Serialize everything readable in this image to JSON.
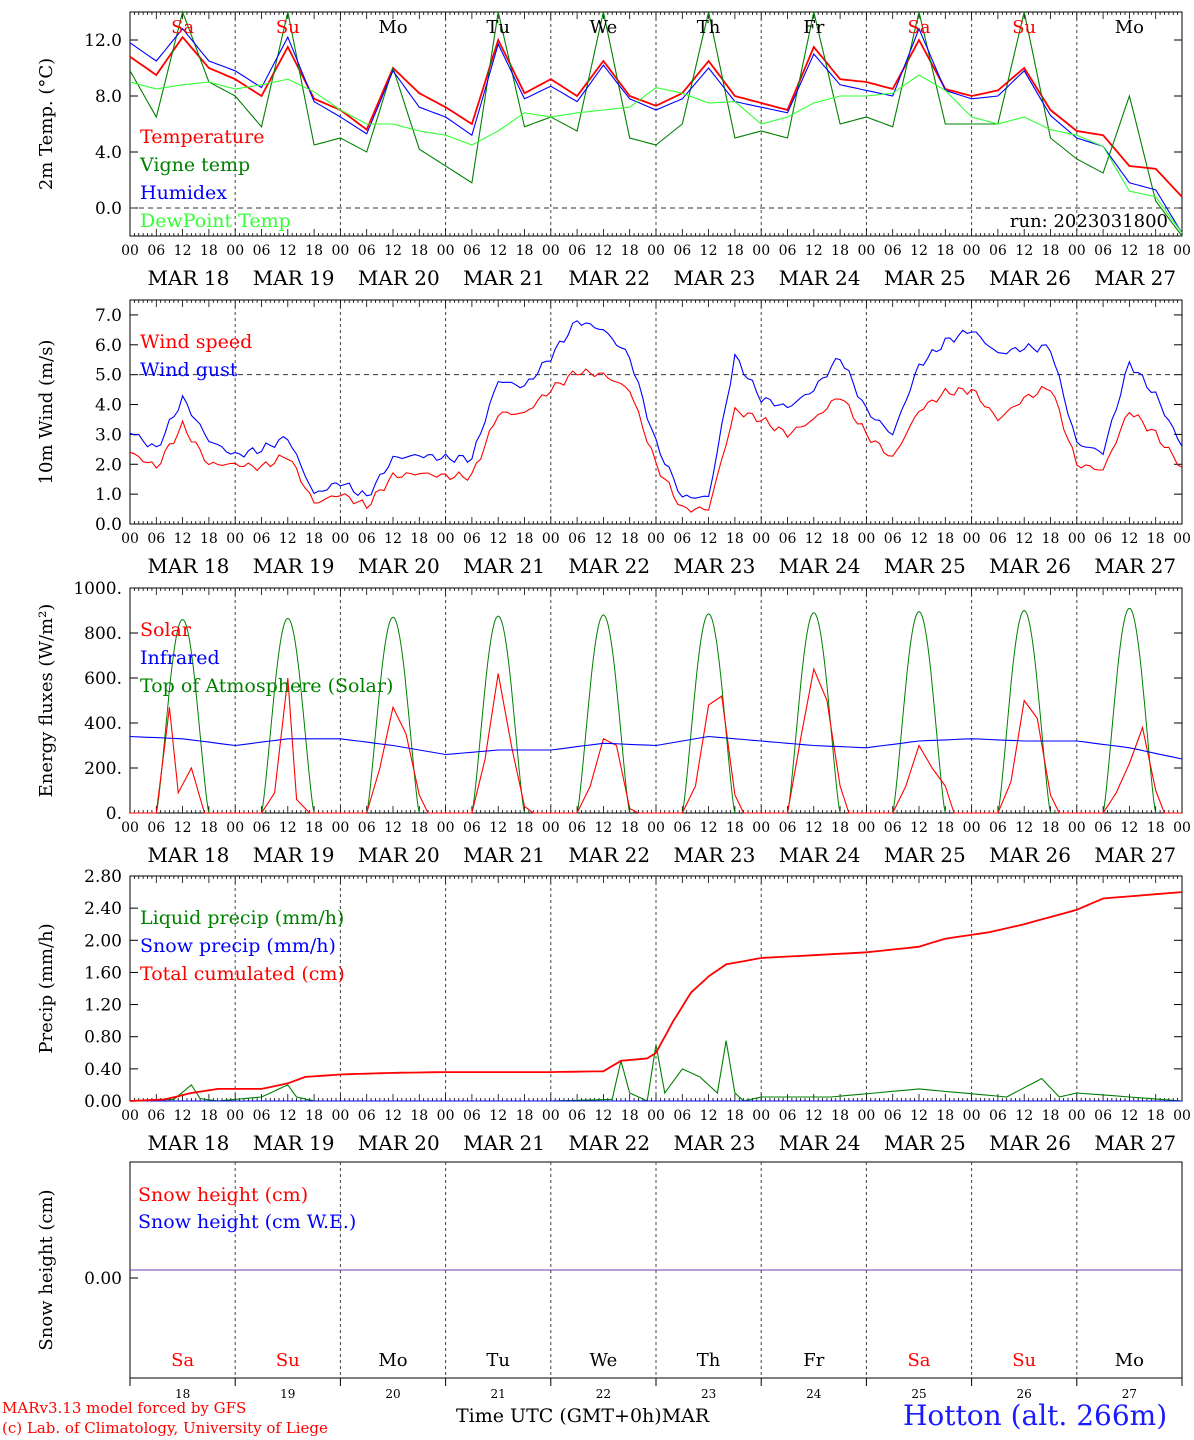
{
  "run": "run: 2023031800",
  "day_names": [
    "Sa",
    "Su",
    "Mo",
    "Tu",
    "We",
    "Th",
    "Fr",
    "Sa",
    "Su",
    "Mo"
  ],
  "date_labels": [
    "MAR 18",
    "MAR 19",
    "MAR 20",
    "MAR 21",
    "MAR 22",
    "MAR 23",
    "MAR 24",
    "MAR 25",
    "MAR 26",
    "MAR 27"
  ],
  "hour_labels": [
    "00",
    "06",
    "12",
    "18"
  ],
  "day_numbers": [
    "18",
    "19",
    "20",
    "21",
    "22",
    "23",
    "24",
    "25",
    "26",
    "27"
  ],
  "footer": {
    "credit_line1": "MARv3.13 model forced by GFS",
    "credit_line2": "(c) Lab. of Climatology, University of Liege",
    "x_title": "Time UTC (GMT+0h)MAR",
    "station": "Hotton (alt. 266m)"
  },
  "colors": {
    "red": "#ff0000",
    "green": "#008000",
    "blue": "#0000ff",
    "light_green": "#33ff33",
    "weekend": "#ff0000",
    "weekday": "#000000",
    "snow_line": "#7a3aaa"
  },
  "chart_data": [
    {
      "type": "line",
      "ylabel": "2m Temp. (°C)",
      "ylim": [
        -2,
        14
      ],
      "yticks": [
        "0.0",
        "4.0",
        "8.0",
        "12.0"
      ],
      "dashed_y": 0,
      "legend": [
        "Temperature",
        "Vigne temp",
        "Humidex",
        "DewPoint Temp"
      ],
      "x_unit": "hours since MAR 18 00 UTC",
      "series": [
        {
          "name": "Temperature",
          "color": "red",
          "x": [
            0,
            6,
            12,
            18,
            24,
            30,
            36,
            42,
            48,
            54,
            60,
            66,
            72,
            78,
            84,
            90,
            96,
            102,
            108,
            114,
            120,
            126,
            132,
            138,
            144,
            150,
            156,
            162,
            168,
            174,
            180,
            186,
            192,
            198,
            204,
            210,
            216,
            222,
            228,
            234,
            240
          ],
          "y": [
            10.8,
            9.5,
            12.2,
            10.0,
            9.2,
            8.0,
            11.5,
            7.8,
            7.0,
            5.6,
            10.0,
            8.2,
            7.2,
            6.0,
            12.0,
            8.2,
            9.2,
            8.0,
            10.5,
            8.0,
            7.3,
            8.2,
            10.5,
            8.0,
            7.5,
            7.0,
            11.5,
            9.2,
            9.0,
            8.5,
            12.0,
            8.5,
            8.0,
            8.4,
            10.0,
            7.0,
            5.5,
            5.2,
            3.0,
            2.8,
            0.8
          ]
        },
        {
          "name": "Vigne temp",
          "color": "green",
          "x": [
            0,
            6,
            12,
            18,
            24,
            30,
            36,
            42,
            48,
            54,
            60,
            66,
            72,
            78,
            84,
            90,
            96,
            102,
            108,
            114,
            120,
            126,
            132,
            138,
            144,
            150,
            156,
            162,
            168,
            174,
            180,
            186,
            192,
            198,
            204,
            210,
            216,
            222,
            228,
            234,
            240
          ],
          "y": [
            9.8,
            6.5,
            14.0,
            9.0,
            8.0,
            5.8,
            14.0,
            4.5,
            5.0,
            4.0,
            10.0,
            4.2,
            3.0,
            1.8,
            14.0,
            5.8,
            6.5,
            5.5,
            14.0,
            5.0,
            4.5,
            6.0,
            14.0,
            5.0,
            5.5,
            5.0,
            14.0,
            6.0,
            6.5,
            5.8,
            14.0,
            6.0,
            6.0,
            6.0,
            14.0,
            5.0,
            3.5,
            2.5,
            8.0,
            0.5,
            -2.0
          ]
        },
        {
          "name": "Humidex",
          "color": "blue",
          "x": [
            0,
            6,
            12,
            18,
            24,
            30,
            36,
            42,
            48,
            54,
            60,
            66,
            72,
            78,
            84,
            90,
            96,
            102,
            108,
            114,
            120,
            126,
            132,
            138,
            144,
            150,
            156,
            162,
            168,
            174,
            180,
            186,
            192,
            198,
            204,
            210,
            216,
            222,
            228,
            234,
            240
          ],
          "y": [
            11.8,
            10.5,
            12.8,
            10.5,
            9.8,
            8.6,
            12.2,
            7.6,
            6.5,
            5.3,
            9.8,
            7.2,
            6.5,
            5.2,
            11.7,
            7.8,
            8.7,
            7.6,
            10.2,
            7.8,
            7.0,
            7.8,
            10.0,
            7.6,
            7.2,
            6.8,
            11.0,
            8.8,
            8.4,
            8.0,
            12.8,
            8.4,
            7.8,
            8.0,
            9.8,
            6.6,
            5.0,
            4.4,
            1.8,
            1.3,
            -1.8
          ]
        },
        {
          "name": "DewPoint Temp",
          "color": "light_green",
          "x": [
            0,
            6,
            12,
            18,
            24,
            30,
            36,
            42,
            48,
            54,
            60,
            66,
            72,
            78,
            84,
            90,
            96,
            102,
            108,
            114,
            120,
            126,
            132,
            138,
            144,
            150,
            156,
            162,
            168,
            174,
            180,
            186,
            192,
            198,
            204,
            210,
            216,
            222,
            228,
            234,
            240
          ],
          "y": [
            9.0,
            8.5,
            8.8,
            9.0,
            8.5,
            8.8,
            9.2,
            8.3,
            7.0,
            6.0,
            6.0,
            5.5,
            5.2,
            4.5,
            5.5,
            6.8,
            6.5,
            6.8,
            7.0,
            7.2,
            8.6,
            8.2,
            7.5,
            7.6,
            6.0,
            6.5,
            7.5,
            8.0,
            8.0,
            8.2,
            9.5,
            8.4,
            6.5,
            6.0,
            6.5,
            5.6,
            5.2,
            4.4,
            1.2,
            0.8,
            -1.8
          ]
        }
      ]
    },
    {
      "type": "line",
      "ylabel": "10m Wind (m/s)",
      "ylim": [
        0,
        7.5
      ],
      "yticks": [
        "0.0",
        "1.0",
        "2.0",
        "3.0",
        "4.0",
        "5.0",
        "6.0",
        "7.0"
      ],
      "dashed_y": 5,
      "legend": [
        "Wind speed",
        "Wind gust"
      ],
      "x_unit": "hours since MAR 18 00 UTC",
      "series": [
        {
          "name": "Wind speed",
          "color": "red",
          "x": [
            0,
            6,
            12,
            18,
            24,
            30,
            36,
            42,
            48,
            54,
            60,
            66,
            72,
            78,
            84,
            90,
            96,
            102,
            108,
            114,
            120,
            126,
            132,
            138,
            144,
            150,
            156,
            162,
            168,
            174,
            180,
            186,
            192,
            198,
            204,
            210,
            216,
            222,
            228,
            234,
            240
          ],
          "y": [
            2.4,
            1.9,
            3.3,
            2.0,
            2.0,
            1.9,
            2.3,
            0.7,
            1.0,
            0.6,
            1.6,
            1.7,
            1.6,
            1.6,
            3.7,
            3.7,
            4.5,
            5.1,
            5.0,
            4.5,
            2.0,
            0.5,
            0.5,
            3.8,
            3.5,
            3.0,
            3.5,
            4.3,
            3.0,
            2.2,
            3.8,
            4.4,
            4.5,
            3.5,
            4.2,
            4.6,
            2.0,
            1.8,
            3.8,
            3.0,
            1.9
          ]
        },
        {
          "name": "Wind gust",
          "color": "blue",
          "x": [
            0,
            6,
            12,
            18,
            24,
            30,
            36,
            42,
            48,
            54,
            60,
            66,
            72,
            78,
            84,
            90,
            96,
            102,
            108,
            114,
            120,
            126,
            132,
            138,
            144,
            150,
            156,
            162,
            168,
            174,
            180,
            186,
            192,
            198,
            204,
            210,
            216,
            222,
            228,
            234,
            240
          ],
          "y": [
            3.1,
            2.5,
            4.2,
            2.8,
            2.3,
            2.5,
            2.9,
            1.0,
            1.4,
            0.9,
            2.2,
            2.3,
            2.2,
            2.2,
            4.8,
            4.6,
            5.6,
            6.8,
            6.5,
            5.6,
            2.7,
            0.9,
            0.9,
            5.6,
            4.2,
            3.9,
            4.5,
            5.6,
            3.8,
            3.0,
            5.3,
            6.1,
            6.5,
            5.7,
            5.9,
            5.9,
            2.7,
            2.4,
            5.4,
            4.3,
            2.6
          ]
        }
      ]
    },
    {
      "type": "line",
      "ylabel": "Energy fluxes (W/m²)",
      "ylim": [
        0,
        1000
      ],
      "yticks": [
        "0.",
        "200.",
        "400.",
        "600.",
        "800.",
        "1000."
      ],
      "legend": [
        "Solar",
        "Infrared",
        "Top of Atmosphere (Solar)"
      ],
      "x_unit": "hours since MAR 18 00 UTC",
      "toa_peaks": [
        860,
        865,
        870,
        875,
        880,
        885,
        890,
        895,
        900,
        910
      ],
      "series": [
        {
          "name": "Solar",
          "color": "red",
          "x": [
            0,
            6,
            9,
            11,
            14,
            17,
            19,
            24,
            30,
            33,
            36,
            38,
            41,
            43,
            48,
            54,
            57,
            60,
            63,
            66,
            68,
            72,
            78,
            81,
            84,
            87,
            90,
            92,
            96,
            102,
            105,
            108,
            111,
            114,
            116,
            120,
            126,
            129,
            132,
            135,
            138,
            140,
            144,
            150,
            153,
            156,
            159,
            162,
            164,
            168,
            174,
            177,
            180,
            183,
            186,
            188,
            192,
            198,
            201,
            204,
            207,
            210,
            212,
            216,
            222,
            225,
            228,
            231,
            234,
            236,
            240
          ],
          "y": [
            0,
            0,
            470,
            90,
            200,
            0,
            0,
            0,
            0,
            90,
            600,
            60,
            0,
            0,
            0,
            0,
            200,
            470,
            350,
            80,
            0,
            0,
            0,
            240,
            620,
            300,
            30,
            0,
            0,
            0,
            120,
            330,
            300,
            20,
            0,
            0,
            0,
            120,
            480,
            520,
            80,
            0,
            0,
            0,
            330,
            640,
            500,
            120,
            0,
            0,
            0,
            120,
            300,
            200,
            120,
            0,
            0,
            0,
            140,
            500,
            420,
            80,
            0,
            0,
            0,
            90,
            220,
            380,
            100,
            0,
            0
          ]
        },
        {
          "name": "Infrared",
          "color": "blue",
          "x": [
            0,
            12,
            24,
            36,
            48,
            60,
            72,
            84,
            96,
            108,
            120,
            132,
            144,
            156,
            168,
            180,
            192,
            204,
            216,
            228,
            240
          ],
          "y": [
            340,
            330,
            300,
            330,
            330,
            300,
            260,
            280,
            280,
            310,
            300,
            340,
            320,
            300,
            290,
            320,
            330,
            320,
            320,
            290,
            240
          ]
        },
        {
          "name": "Top of Atmosphere (Solar)",
          "color": "green"
        }
      ]
    },
    {
      "type": "line",
      "ylabel": "Precip (mm/h)",
      "ylim": [
        0,
        2.8
      ],
      "yticks": [
        "0.00",
        "0.40",
        "0.80",
        "1.20",
        "1.60",
        "2.00",
        "2.40",
        "2.80"
      ],
      "legend": [
        "Liquid precip (mm/h)",
        "Snow precip (mm/h)",
        "Total cumulated (cm)"
      ],
      "x_unit": "hours since MAR 18 00 UTC",
      "series": [
        {
          "name": "Liquid precip (mm/h)",
          "color": "green",
          "x": [
            0,
            10,
            14,
            16,
            20,
            30,
            36,
            38,
            42,
            60,
            96,
            110,
            112,
            114,
            118,
            120,
            122,
            126,
            130,
            134,
            136,
            138,
            140,
            144,
            160,
            180,
            186,
            200,
            208,
            212,
            216,
            240
          ],
          "y": [
            0,
            0.02,
            0.2,
            0.03,
            0,
            0.05,
            0.2,
            0.05,
            0,
            0,
            0,
            0.02,
            0.5,
            0.1,
            0,
            0.7,
            0.1,
            0.4,
            0.3,
            0.1,
            0.75,
            0.1,
            0,
            0.05,
            0.05,
            0.15,
            0.12,
            0.05,
            0.28,
            0.05,
            0.1,
            0
          ]
        },
        {
          "name": "Snow precip (mm/h)",
          "color": "blue",
          "x": [
            0,
            240
          ],
          "y": [
            0,
            0
          ]
        },
        {
          "name": "Total cumulated (cm)",
          "color": "red",
          "x": [
            0,
            8,
            14,
            20,
            30,
            36,
            40,
            48,
            60,
            72,
            96,
            108,
            112,
            118,
            120,
            124,
            128,
            132,
            136,
            144,
            168,
            180,
            186,
            196,
            204,
            216,
            222,
            240
          ],
          "y": [
            0,
            0.02,
            0.1,
            0.15,
            0.15,
            0.22,
            0.3,
            0.33,
            0.35,
            0.36,
            0.36,
            0.37,
            0.5,
            0.53,
            0.6,
            1.0,
            1.35,
            1.55,
            1.7,
            1.78,
            1.85,
            1.92,
            2.02,
            2.1,
            2.2,
            2.38,
            2.52,
            2.6
          ]
        }
      ]
    },
    {
      "type": "line",
      "ylabel": "Snow height (cm)",
      "yticks": [
        "0.00"
      ],
      "legend": [
        "Snow height (cm)",
        "Snow height (cm W.E.)"
      ],
      "x_unit": "hours since MAR 18 00 UTC",
      "series": [
        {
          "name": "Snow height (cm)",
          "color": "snow_line",
          "x": [
            0,
            240
          ],
          "y": [
            0,
            0
          ]
        }
      ]
    }
  ]
}
